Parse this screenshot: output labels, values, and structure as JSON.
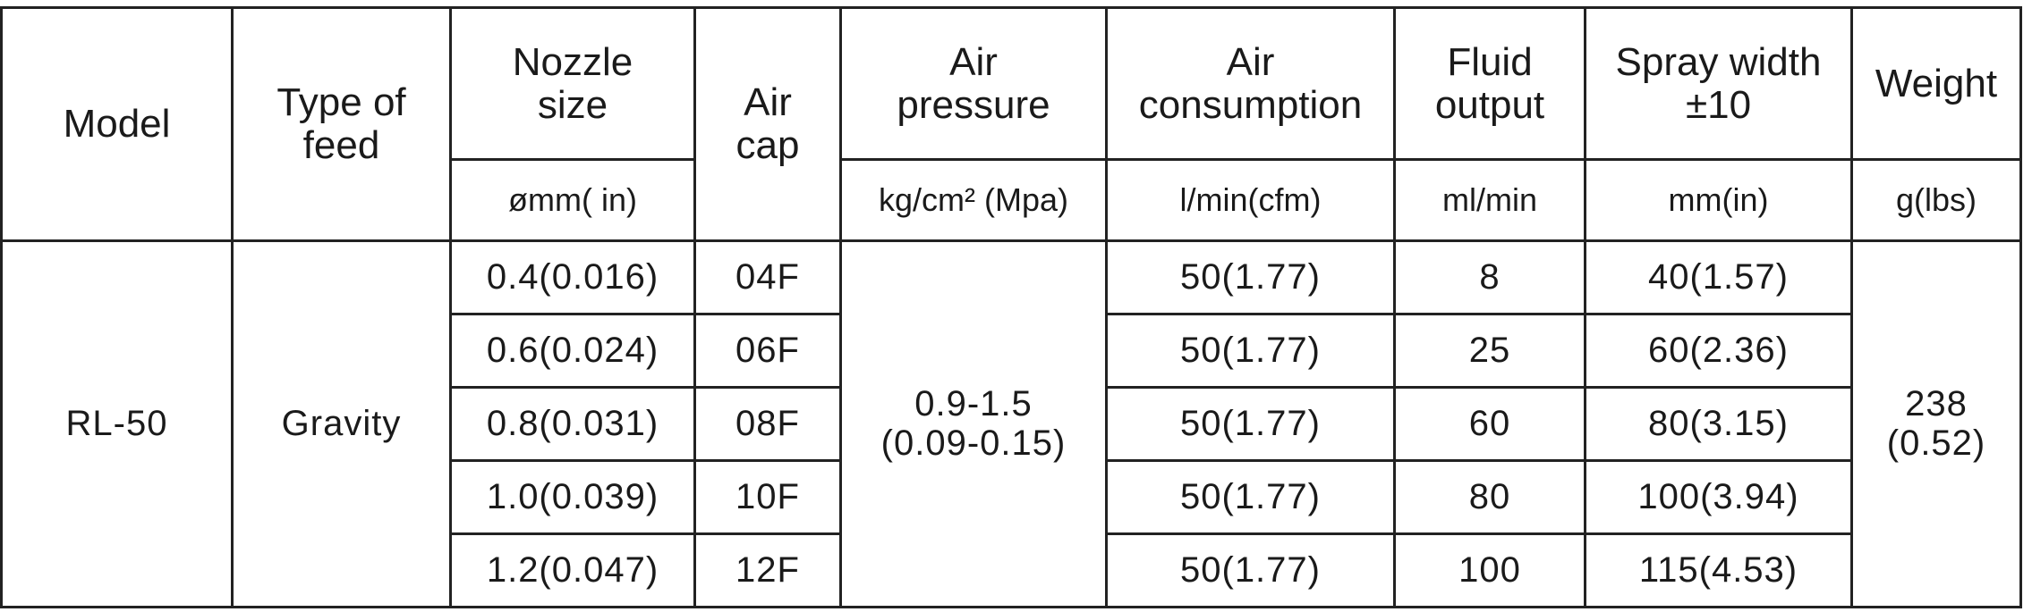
{
  "header": {
    "columns": [
      "Model",
      "Type  of\nfeed",
      "Nozzle\nsize",
      "Air\ncap",
      "Air\npressure",
      "Air\nconsumption",
      "Fluid\noutput",
      "Spray  width\n±10",
      "Weight"
    ],
    "units": [
      "ømm( in)",
      "kg/cm² (Mpa)",
      "l/min(cfm)",
      "ml/min",
      "mm(in)",
      "g(lbs)"
    ]
  },
  "model": "RL-50",
  "feed": "Gravity",
  "air_pressure": "0.9-1.5\n(0.09-0.15)",
  "weight": "238\n(0.52)",
  "rows": [
    [
      "0.4(0.016)",
      "04F",
      "50(1.77)",
      "8",
      "40(1.57)"
    ],
    [
      "0.6(0.024)",
      "06F",
      "50(1.77)",
      "25",
      "60(2.36)"
    ],
    [
      "0.8(0.031)",
      "08F",
      "50(1.77)",
      "60",
      "80(3.15)"
    ],
    [
      "1.0(0.039)",
      "10F",
      "50(1.77)",
      "80",
      "100(3.94)"
    ],
    [
      "1.2(0.047)",
      "12F",
      "50(1.77)",
      "100",
      "115(4.53)"
    ]
  ]
}
